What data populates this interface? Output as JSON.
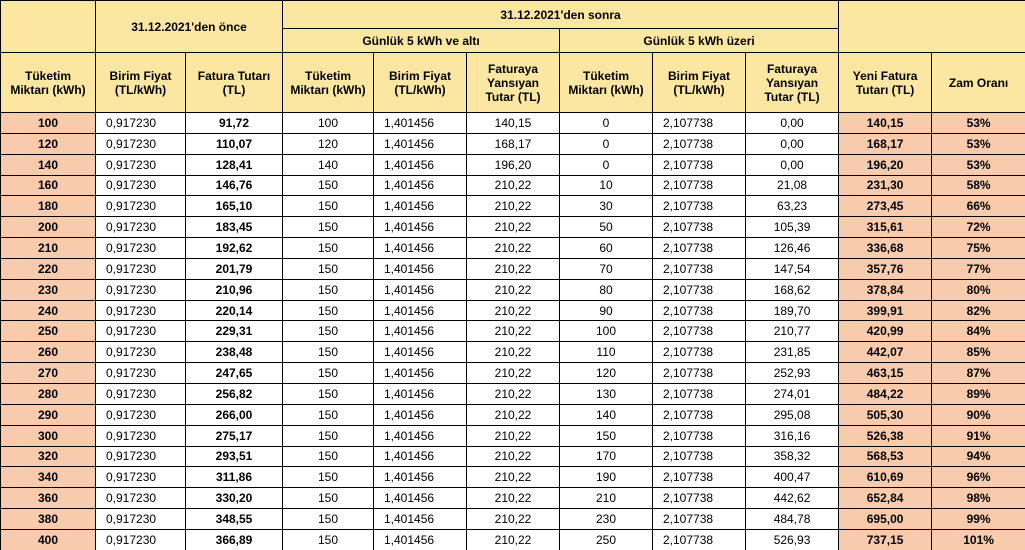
{
  "header": {
    "before": "31.12.2021'den önce",
    "after": "31.12.2021'den sonra",
    "low_group": "Günlük 5 kWh ve altı",
    "high_group": "Günlük 5 kWh üzeri",
    "columns": [
      "Tüketim\nMiktarı (kWh)",
      "Birim Fiyat\n(TL/kWh)",
      "Fatura Tutarı\n(TL)",
      "Tüketim\nMiktarı (kWh)",
      "Birim Fiyat\n(TL/kWh)",
      "Faturaya\nYansıyan\nTutar (TL)",
      "Tüketim\nMiktarı (kWh)",
      "Birim Fiyat\n(TL/kWh)",
      "Faturaya\nYansıyan\nTutar (TL)",
      "Yeni Fatura\nTutarı (TL)",
      "Zam Oranı"
    ]
  },
  "table": {
    "rows": [
      [
        "100",
        "0,917230",
        "91,72",
        "100",
        "1,401456",
        "140,15",
        "0",
        "2,107738",
        "0,00",
        "140,15",
        "53%"
      ],
      [
        "120",
        "0,917230",
        "110,07",
        "120",
        "1,401456",
        "168,17",
        "0",
        "2,107738",
        "0,00",
        "168,17",
        "53%"
      ],
      [
        "140",
        "0,917230",
        "128,41",
        "140",
        "1,401456",
        "196,20",
        "0",
        "2,107738",
        "0,00",
        "196,20",
        "53%"
      ],
      [
        "160",
        "0,917230",
        "146,76",
        "150",
        "1,401456",
        "210,22",
        "10",
        "2,107738",
        "21,08",
        "231,30",
        "58%"
      ],
      [
        "180",
        "0,917230",
        "165,10",
        "150",
        "1,401456",
        "210,22",
        "30",
        "2,107738",
        "63,23",
        "273,45",
        "66%"
      ],
      [
        "200",
        "0,917230",
        "183,45",
        "150",
        "1,401456",
        "210,22",
        "50",
        "2,107738",
        "105,39",
        "315,61",
        "72%"
      ],
      [
        "210",
        "0,917230",
        "192,62",
        "150",
        "1,401456",
        "210,22",
        "60",
        "2,107738",
        "126,46",
        "336,68",
        "75%"
      ],
      [
        "220",
        "0,917230",
        "201,79",
        "150",
        "1,401456",
        "210,22",
        "70",
        "2,107738",
        "147,54",
        "357,76",
        "77%"
      ],
      [
        "230",
        "0,917230",
        "210,96",
        "150",
        "1,401456",
        "210,22",
        "80",
        "2,107738",
        "168,62",
        "378,84",
        "80%"
      ],
      [
        "240",
        "0,917230",
        "220,14",
        "150",
        "1,401456",
        "210,22",
        "90",
        "2,107738",
        "189,70",
        "399,91",
        "82%"
      ],
      [
        "250",
        "0,917230",
        "229,31",
        "150",
        "1,401456",
        "210,22",
        "100",
        "2,107738",
        "210,77",
        "420,99",
        "84%"
      ],
      [
        "260",
        "0,917230",
        "238,48",
        "150",
        "1,401456",
        "210,22",
        "110",
        "2,107738",
        "231,85",
        "442,07",
        "85%"
      ],
      [
        "270",
        "0,917230",
        "247,65",
        "150",
        "1,401456",
        "210,22",
        "120",
        "2,107738",
        "252,93",
        "463,15",
        "87%"
      ],
      [
        "280",
        "0,917230",
        "256,82",
        "150",
        "1,401456",
        "210,22",
        "130",
        "2,107738",
        "274,01",
        "484,22",
        "89%"
      ],
      [
        "290",
        "0,917230",
        "266,00",
        "150",
        "1,401456",
        "210,22",
        "140",
        "2,107738",
        "295,08",
        "505,30",
        "90%"
      ],
      [
        "300",
        "0,917230",
        "275,17",
        "150",
        "1,401456",
        "210,22",
        "150",
        "2,107738",
        "316,16",
        "526,38",
        "91%"
      ],
      [
        "320",
        "0,917230",
        "293,51",
        "150",
        "1,401456",
        "210,22",
        "170",
        "2,107738",
        "358,32",
        "568,53",
        "94%"
      ],
      [
        "340",
        "0,917230",
        "311,86",
        "150",
        "1,401456",
        "210,22",
        "190",
        "2,107738",
        "400,47",
        "610,69",
        "96%"
      ],
      [
        "360",
        "0,917230",
        "330,20",
        "150",
        "1,401456",
        "210,22",
        "210",
        "2,107738",
        "442,62",
        "652,84",
        "98%"
      ],
      [
        "380",
        "0,917230",
        "348,55",
        "150",
        "1,401456",
        "210,22",
        "230",
        "2,107738",
        "484,78",
        "695,00",
        "99%"
      ],
      [
        "400",
        "0,917230",
        "366,89",
        "150",
        "1,401456",
        "210,22",
        "250",
        "2,107738",
        "526,93",
        "737,15",
        "101%"
      ]
    ]
  }
}
